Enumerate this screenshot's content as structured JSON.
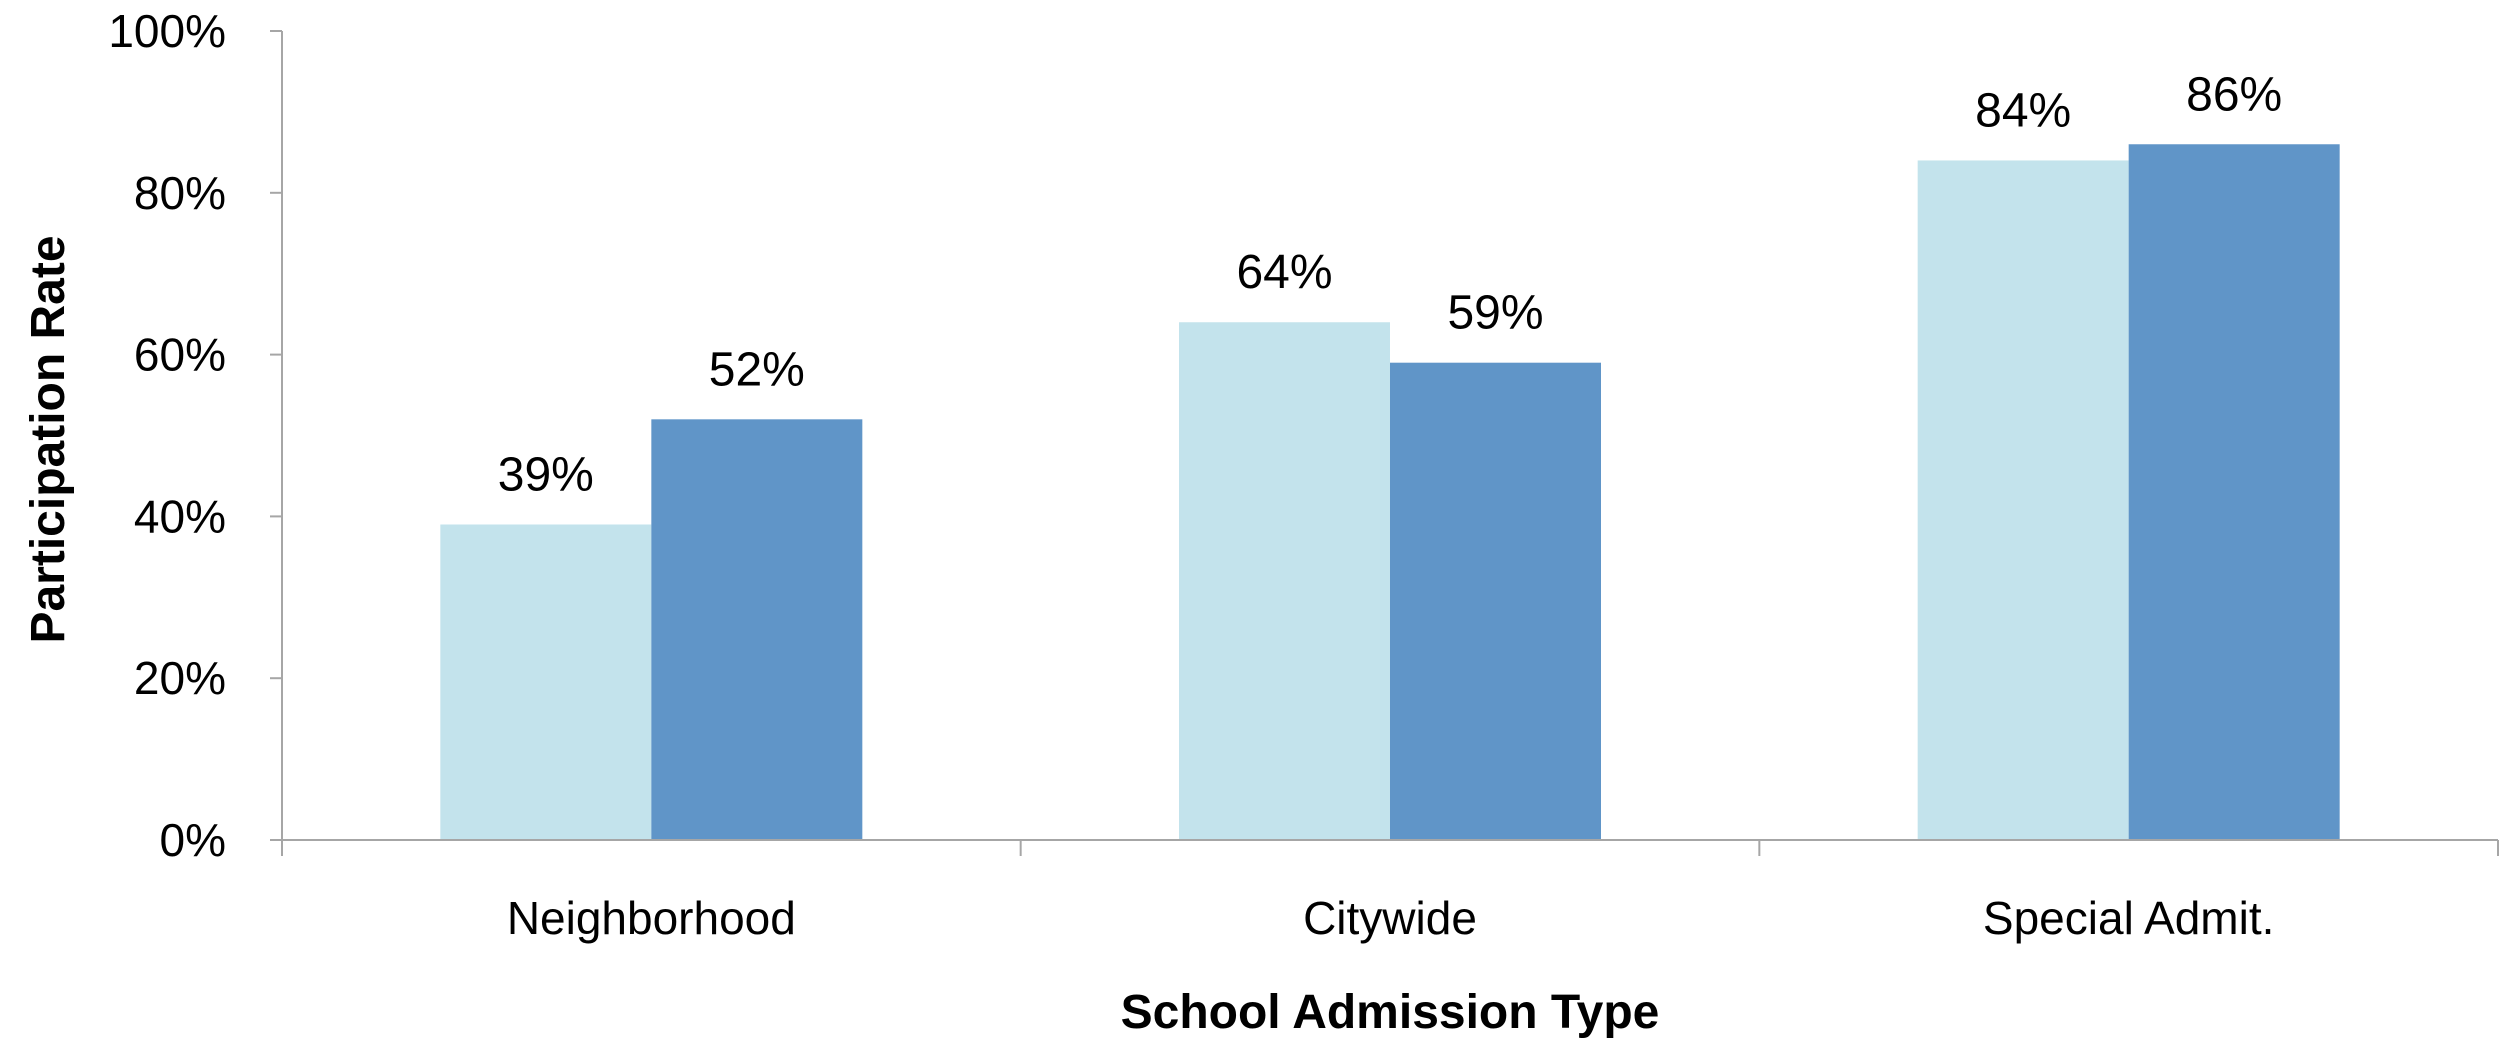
{
  "chart_data": {
    "type": "bar",
    "categories": [
      "Neighborhood",
      "Citywide",
      "Special Admit."
    ],
    "series": [
      {
        "values": [
          39,
          64,
          84
        ],
        "color": "#c3e3ec"
      },
      {
        "values": [
          52,
          59,
          86
        ],
        "color": "#6095c8"
      }
    ],
    "data_labels": [
      [
        "39%",
        "64%",
        "84%"
      ],
      [
        "52%",
        "59%",
        "86%"
      ]
    ],
    "xlabel": "School Admission Type",
    "ylabel": "Participation Rate",
    "ylim": [
      0,
      100
    ],
    "yticks": [
      0,
      20,
      40,
      60,
      80,
      100
    ],
    "ytick_labels": [
      "0%",
      "20%",
      "40%",
      "60%",
      "80%",
      "100%"
    ],
    "grid": false,
    "legend": "none"
  }
}
